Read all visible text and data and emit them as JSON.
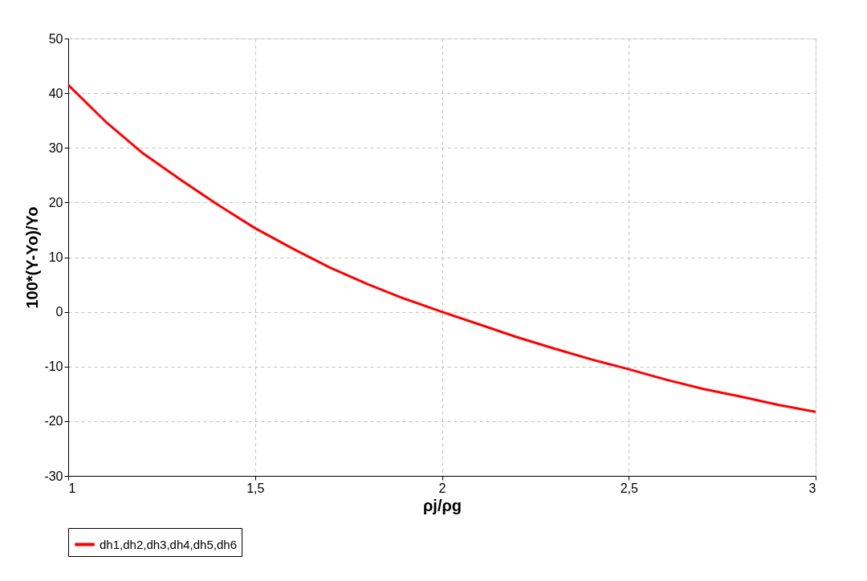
{
  "chart_data": {
    "type": "line",
    "xlabel": "ρj/ρg",
    "ylabel": "100*(Y-Yo)/Yo",
    "x": [
      1,
      1.1,
      1.2,
      1.3,
      1.4,
      1.5,
      1.6,
      1.7,
      1.8,
      1.9,
      2,
      2.1,
      2.2,
      2.3,
      2.4,
      2.5,
      2.6,
      2.7,
      2.8,
      2.9,
      3
    ],
    "series": [
      {
        "name": "dh1,dh2,dh3,dh4,dh5,dh6",
        "color": "#ff0000",
        "values": [
          41.5,
          34.8,
          29,
          24.2,
          19.6,
          15.3,
          11.6,
          8.1,
          5.1,
          2.4,
          0,
          -2.3,
          -4.6,
          -6.7,
          -8.7,
          -10.5,
          -12.4,
          -14.1,
          -15.5,
          -17,
          -18.3
        ]
      }
    ],
    "xlim": [
      1,
      3
    ],
    "ylim": [
      -30,
      50
    ],
    "xticks": [
      1,
      {
        "value": 1.5,
        "label": "1,5"
      },
      2,
      {
        "value": 2.5,
        "label": "2,5"
      },
      3
    ],
    "yticks": [
      -30,
      -20,
      -10,
      0,
      10,
      20,
      30,
      40,
      50
    ],
    "grid": true,
    "legend": "bottom",
    "marker": "none",
    "line_style": "solid"
  }
}
